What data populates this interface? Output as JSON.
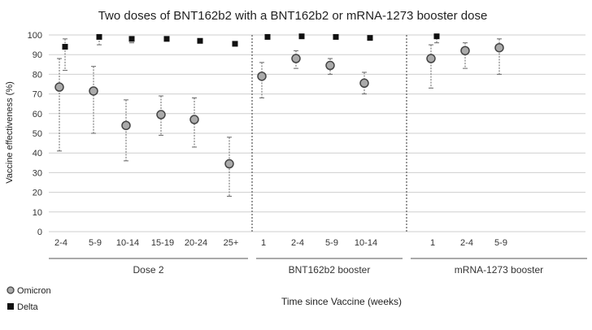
{
  "chart_data": {
    "type": "scatter",
    "title": "Two doses of BNT162b2 with a BNT162b2 or mRNA-1273 booster dose",
    "xlabel": "Time since Vaccine (weeks)",
    "ylabel": "Vaccine effectiveness (%)",
    "ylim": [
      0,
      100
    ],
    "yticks": [
      0,
      10,
      20,
      30,
      40,
      50,
      60,
      70,
      80,
      90,
      100
    ],
    "grid": true,
    "legend_position": "bottom-left",
    "groups": [
      {
        "label": "Dose 2",
        "categories": [
          "2-4",
          "5-9",
          "10-14",
          "15-19",
          "20-24",
          "25+"
        ],
        "omicron": [
          {
            "x": "2-4",
            "y": 73.5,
            "lo": 41,
            "hi": 88
          },
          {
            "x": "5-9",
            "y": 71.5,
            "lo": 50,
            "hi": 84
          },
          {
            "x": "10-14",
            "y": 54,
            "lo": 36,
            "hi": 67
          },
          {
            "x": "15-19",
            "y": 59.5,
            "lo": 49,
            "hi": 69
          },
          {
            "x": "20-24",
            "y": 57,
            "lo": 43,
            "hi": 68
          },
          {
            "x": "25+",
            "y": 34.5,
            "lo": 18,
            "hi": 48
          }
        ],
        "delta": [
          {
            "x": "2-4",
            "y": 94,
            "lo": 82,
            "hi": 98
          },
          {
            "x": "5-9",
            "y": 99,
            "lo": 95,
            "hi": 100
          },
          {
            "x": "10-14",
            "y": 98,
            "lo": 96,
            "hi": 99
          },
          {
            "x": "15-19",
            "y": 98,
            "lo": 97,
            "hi": 99
          },
          {
            "x": "20-24",
            "y": 97,
            "lo": 96,
            "hi": 98
          },
          {
            "x": "25+",
            "y": 95.5,
            "lo": 95,
            "hi": 96
          }
        ]
      },
      {
        "label": "BNT162b2 booster",
        "categories": [
          "1",
          "2-4",
          "5-9",
          "10-14"
        ],
        "omicron": [
          {
            "x": "1",
            "y": 79,
            "lo": 68,
            "hi": 86
          },
          {
            "x": "2-4",
            "y": 88,
            "lo": 83,
            "hi": 92
          },
          {
            "x": "5-9",
            "y": 84.5,
            "lo": 80,
            "hi": 88
          },
          {
            "x": "10-14",
            "y": 75.5,
            "lo": 70,
            "hi": 81
          }
        ],
        "delta": [
          {
            "x": "1",
            "y": 99,
            "lo": 98,
            "hi": 99.5
          },
          {
            "x": "2-4",
            "y": 99.3,
            "lo": 99,
            "hi": 99.6
          },
          {
            "x": "5-9",
            "y": 99,
            "lo": 98.5,
            "hi": 99.3
          },
          {
            "x": "10-14",
            "y": 98.5,
            "lo": 98,
            "hi": 99
          }
        ]
      },
      {
        "label": "mRNA-1273 booster",
        "categories": [
          "1",
          "2-4",
          "5-9"
        ],
        "omicron": [
          {
            "x": "1",
            "y": 88,
            "lo": 73,
            "hi": 95
          },
          {
            "x": "2-4",
            "y": 92,
            "lo": 83,
            "hi": 96
          },
          {
            "x": "5-9",
            "y": 93.5,
            "lo": 80,
            "hi": 98
          }
        ],
        "delta": [
          {
            "x": "1",
            "y": 99.3,
            "lo": 96,
            "hi": 99.8
          }
        ]
      }
    ],
    "legend": [
      {
        "name": "Omicron",
        "marker": "circle",
        "color": "#aaaaaa"
      },
      {
        "name": "Delta",
        "marker": "square",
        "color": "#111111"
      }
    ],
    "colors": {
      "omicron_fill": "#aaaaaa",
      "omicron_stroke": "#444444",
      "delta": "#111111",
      "grid": "#cfcfcf",
      "errorbar": "#666666"
    }
  }
}
